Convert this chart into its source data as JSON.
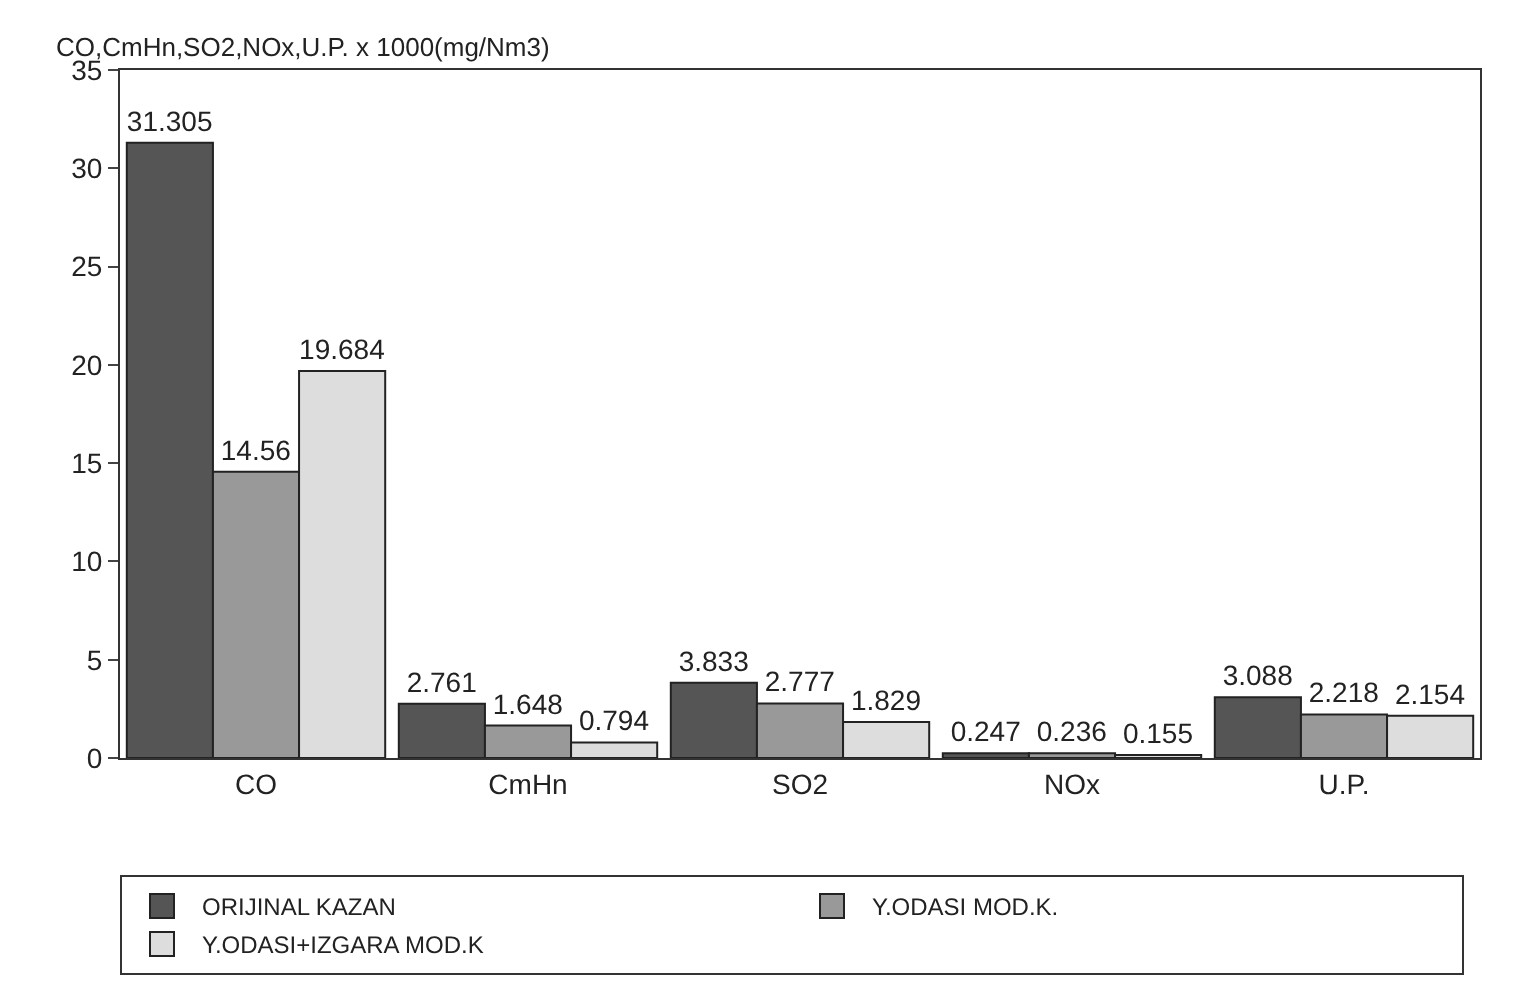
{
  "chart_data": {
    "type": "bar",
    "ylabel": "CO,CmHn,SO2,NOx,U.P. x 1000(mg/Nm3)",
    "categories": [
      "CO",
      "CmHn",
      "SO2",
      "NOx",
      "U.P."
    ],
    "series": [
      {
        "name": "ORIJINAL KAZAN",
        "color": "#555555",
        "values": [
          31.305,
          2.761,
          3.833,
          0.247,
          3.088
        ]
      },
      {
        "name": "Y.ODASI MOD.K.",
        "color": "#999999",
        "values": [
          14.56,
          1.648,
          2.777,
          0.236,
          2.218
        ]
      },
      {
        "name": "Y.ODASI+IZGARA MOD.K",
        "color": "#dddddd",
        "values": [
          19.684,
          0.794,
          1.829,
          0.155,
          2.154
        ]
      }
    ],
    "ylim": [
      0,
      35
    ],
    "yticks": [
      0,
      5,
      10,
      15,
      20,
      25,
      30,
      35
    ],
    "grid": false,
    "legend": "bottom",
    "data_labels": true
  }
}
